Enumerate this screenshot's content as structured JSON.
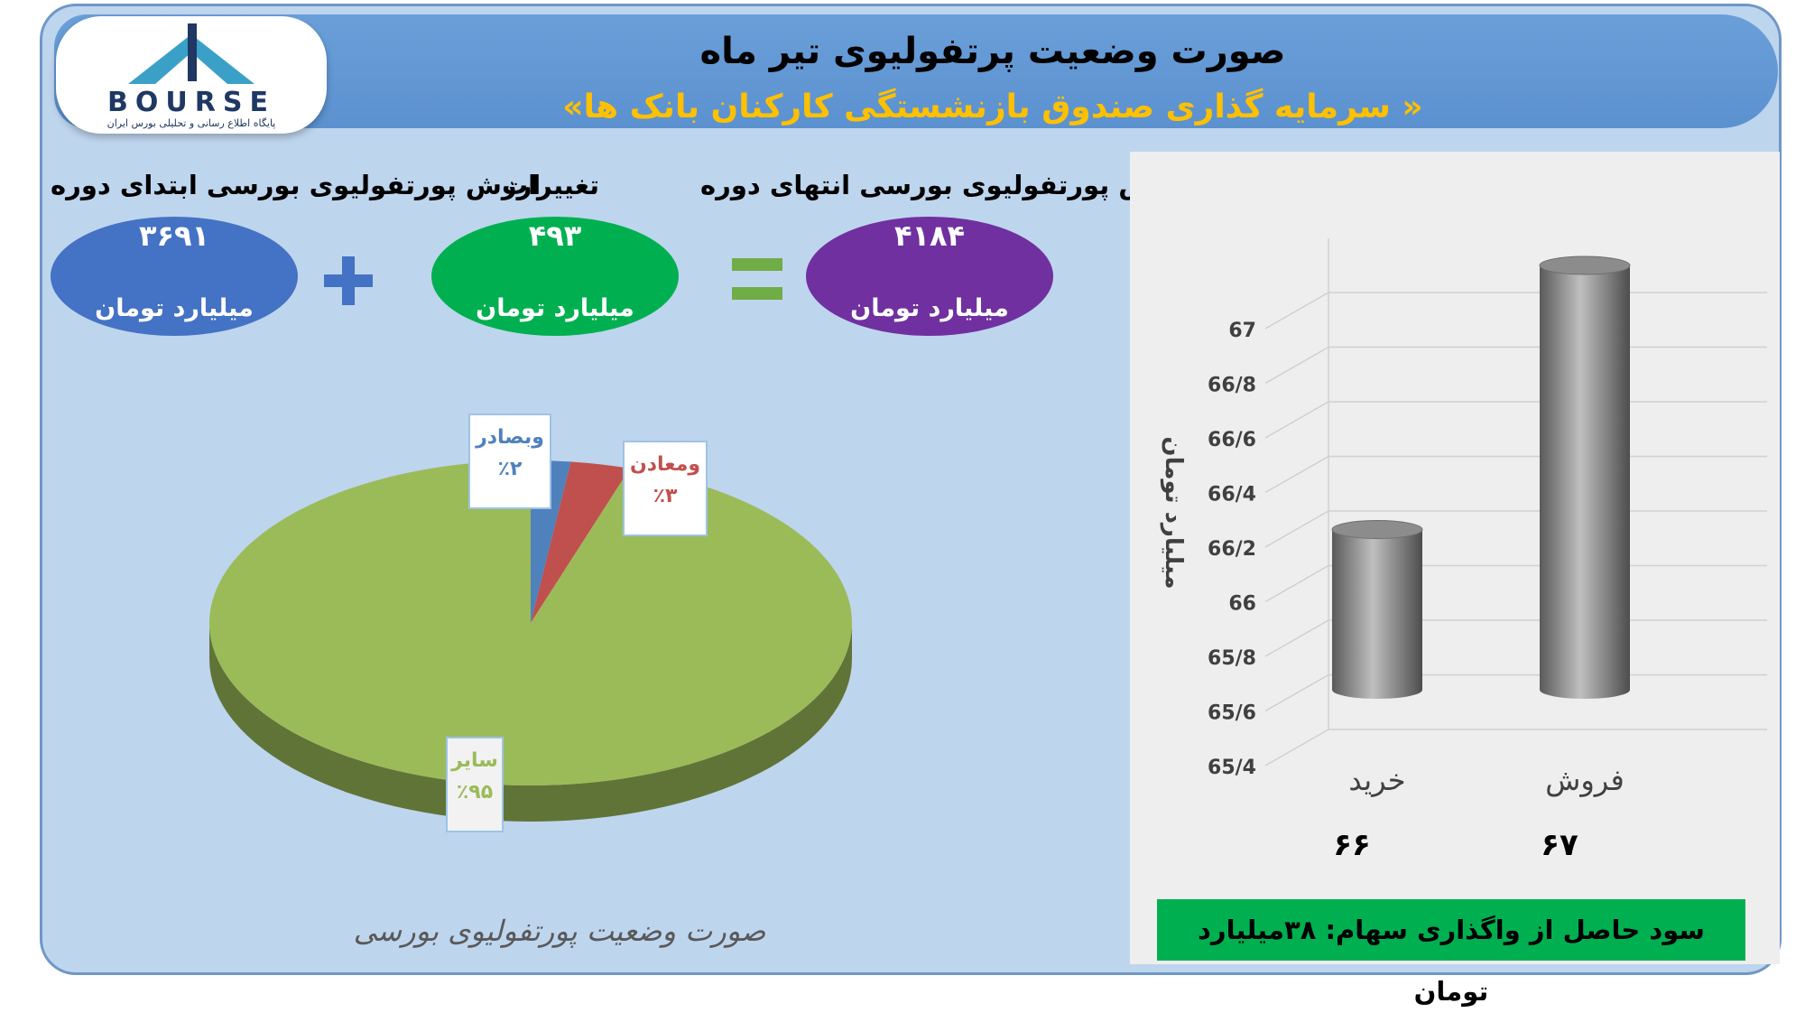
{
  "header": {
    "title": "صورت وضعیت پرتفولیوی تیر ماه",
    "subtitle": "«سرمایه گذاری صندوق بازنشستگی کارکنان بانک ها »"
  },
  "logo": {
    "word": "BOURSE",
    "tagline": "پایگاه اطلاع رسانی و تحلیلی بورس ایران"
  },
  "summary": {
    "start": {
      "label": "ارزش پورتفولیوی بورسی ابتدای دوره",
      "value": "۳۶۹۱",
      "unit": "میلیارد تومان",
      "color": "#4472c4"
    },
    "change": {
      "label": "تغییرات",
      "value": "۴۹۳",
      "unit": "میلیارد تومان",
      "color": "#00b050"
    },
    "end": {
      "label": "ارزش پورتفولیوی بورسی انتهای دوره",
      "value": "۴۱۸۴",
      "unit": "میلیارد تومان",
      "color": "#7030a0"
    }
  },
  "pie_caption": "صورت وضعیت پورتفولیوی بورسی",
  "profit": "سود حاصل از واگذاری سهام: ۳۸میلیارد تومان",
  "chart_data": [
    {
      "type": "pie",
      "title": "صورت وضعیت پورتفولیوی بورسی",
      "slices": [
        {
          "label": "سایر",
          "value": 95,
          "value_label": "٪۹۵",
          "color": "#9bbb59"
        },
        {
          "label": "وبصادر",
          "value": 2,
          "value_label": "٪۲",
          "color": "#4f81bd"
        },
        {
          "label": "ومعادن",
          "value": 3,
          "value_label": "٪۳",
          "color": "#c0504d"
        }
      ]
    },
    {
      "type": "bar",
      "categories": [
        "خرید",
        "فروش"
      ],
      "values": [
        66,
        67
      ],
      "value_labels": [
        "۶۶",
        "۶۷"
      ],
      "ylabel": "میلیارد تومان",
      "ylim": [
        65.4,
        67
      ],
      "yticks": [
        "65/4",
        "65/6",
        "65/8",
        "66",
        "66/2",
        "66/4",
        "66/6",
        "66/8",
        "67"
      ],
      "grid": true,
      "color": "#808080"
    }
  ]
}
